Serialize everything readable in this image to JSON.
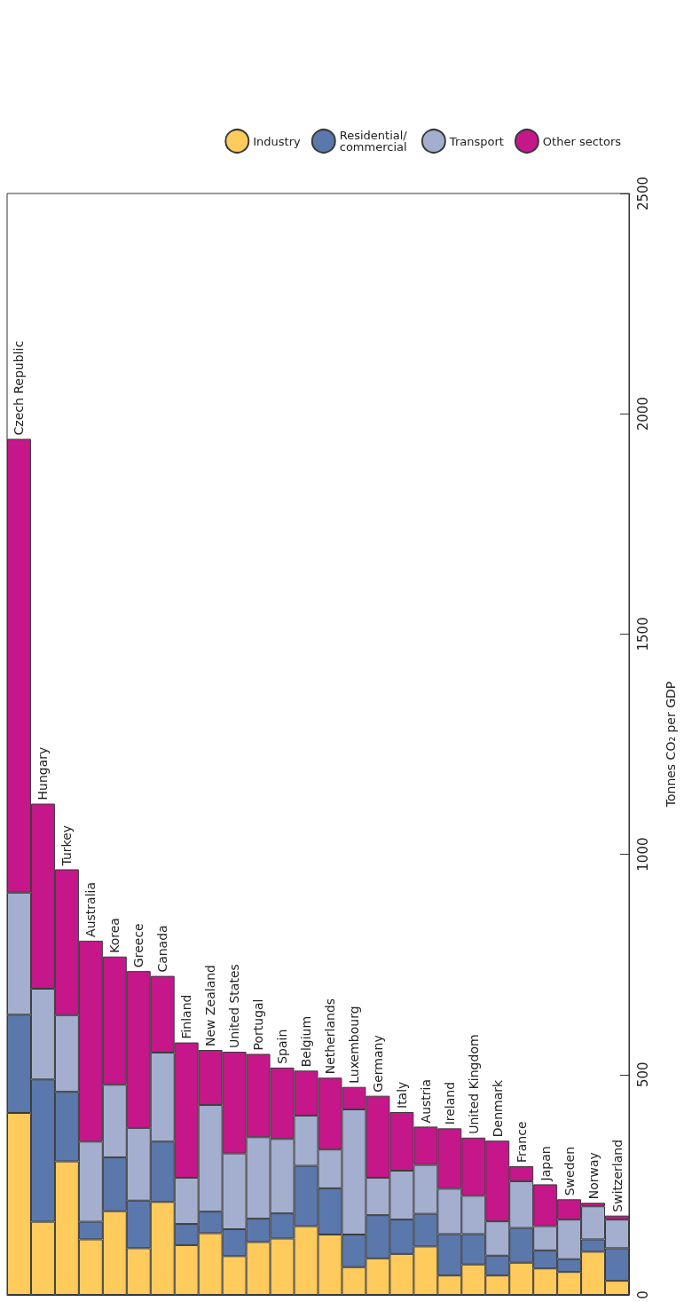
{
  "chart_data": {
    "type": "bar",
    "stacked": true,
    "ylabel": "Tonnes CO₂ per GDP",
    "categories": [
      "Czech Republic",
      "Hungary",
      "Turkey",
      "Australia",
      "Korea",
      "Greece",
      "Canada",
      "Finland",
      "New Zealand",
      "United States",
      "Portugal",
      "Spain",
      "Belgium",
      "Netherlands",
      "Luxembourg",
      "Germany",
      "Italy",
      "Austria",
      "Ireland",
      "United Kingdom",
      "Denmark",
      "France",
      "Japan",
      "Sweden",
      "Norway",
      "Switzerland"
    ],
    "series": [
      {
        "name": "Industry",
        "color": "#fecb5c",
        "values": [
          413,
          166,
          303,
          126,
          190,
          106,
          211,
          113,
          140,
          88,
          120,
          128,
          156,
          137,
          63,
          83,
          93,
          110,
          44,
          69,
          44,
          73,
          60,
          52,
          98,
          32
        ]
      },
      {
        "name": "Residential/ commercial",
        "color": "#5b78ad",
        "values": [
          223,
          323,
          158,
          40,
          122,
          108,
          137,
          48,
          49,
          61,
          53,
          57,
          137,
          105,
          74,
          98,
          78,
          74,
          94,
          69,
          45,
          79,
          41,
          29,
          28,
          74
        ]
      },
      {
        "name": "Transport",
        "color": "#a4afd0",
        "values": [
          277,
          206,
          174,
          182,
          165,
          165,
          202,
          105,
          242,
          172,
          185,
          169,
          114,
          88,
          284,
          85,
          111,
          111,
          103,
          87,
          78,
          106,
          55,
          90,
          75,
          65
        ]
      },
      {
        "name": "Other sectors",
        "color": "#c5168a",
        "values": [
          1030,
          420,
          331,
          456,
          291,
          356,
          174,
          307,
          125,
          231,
          189,
          162,
          102,
          163,
          51,
          186,
          133,
          87,
          137,
          132,
          183,
          34,
          95,
          46,
          8,
          9
        ]
      }
    ],
    "ylim": [
      0,
      2500
    ],
    "yticks": [
      0,
      500,
      1000,
      1500,
      2000,
      2500
    ],
    "grid": false,
    "legend": "top right"
  }
}
